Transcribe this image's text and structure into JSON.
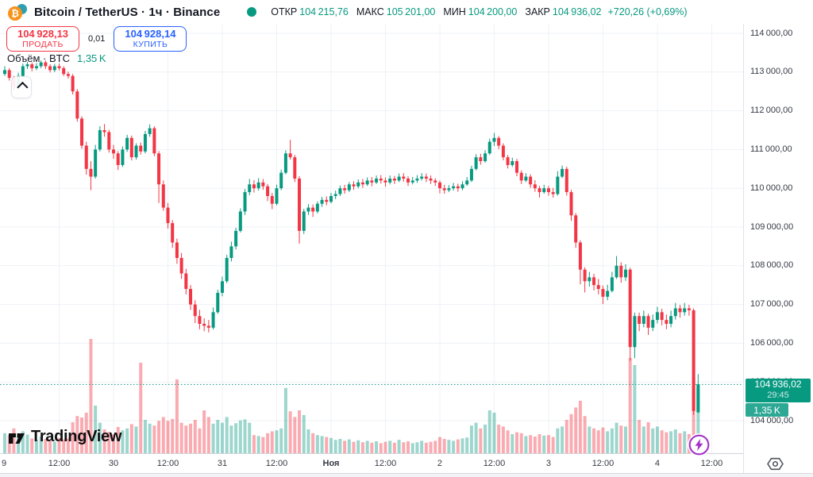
{
  "colors": {
    "up": "#089981",
    "down": "#F23645",
    "up_soft": "rgba(8,153,129,0.40)",
    "down_soft": "rgba(242,54,69,0.42)",
    "blue": "#2962FF",
    "purple": "#A333C8",
    "btc_orange": "#F7931A",
    "tether_teal": "#2F9EAE",
    "grid": "#EFF1F5",
    "axis_text": "#363A45"
  },
  "header": {
    "title": "Bitcoin / TetherUS · 1ч · Binance",
    "ohlc": {
      "open_label": "ОТКР",
      "open_value": "104 215,76",
      "high_label": "МАКС",
      "high_value": "105 201,00",
      "low_label": "МИН",
      "low_value": "104 200,00",
      "close_label": "ЗАКР",
      "close_value": "104 936,02",
      "change": "+720,26 (+0,69%)"
    }
  },
  "trade_panel": {
    "sell_price": "104 928,13",
    "sell_label": "ПРОДАТЬ",
    "spread": "0,01",
    "buy_price": "104 928,14",
    "buy_label": "КУПИТЬ"
  },
  "legend": {
    "title": "Объём · BTC",
    "value": "1,35 K"
  },
  "badges": {
    "last_price": "104 936,02",
    "countdown": "29:45",
    "volume": "1,35 K"
  },
  "branding": {
    "name": "TradingView"
  },
  "chart_data": {
    "type": "candlestick",
    "title": "Bitcoin / TetherUS",
    "interval": "1ч",
    "exchange": "Binance",
    "legend_volume_btc": 1350,
    "last": {
      "open": 104215.76,
      "high": 105201.0,
      "low": 104200.0,
      "close": 104936.02,
      "change": 720.26,
      "change_pct": 0.69,
      "countdown": "29:45"
    },
    "y_axis": {
      "max": 114000,
      "min": 104000,
      "ticks": [
        {
          "v": 114000,
          "label": "114 000,00"
        },
        {
          "v": 113000,
          "label": "113 000,00"
        },
        {
          "v": 112000,
          "label": "112 000,00"
        },
        {
          "v": 111000,
          "label": "111 000,00"
        },
        {
          "v": 110000,
          "label": "110 000,00"
        },
        {
          "v": 109000,
          "label": "109 000,00"
        },
        {
          "v": 108000,
          "label": "108 000,00"
        },
        {
          "v": 107000,
          "label": "107 000,00"
        },
        {
          "v": 106000,
          "label": "106 000,00"
        },
        {
          "v": 105000,
          "label": "105 000,00"
        },
        {
          "v": 104000,
          "label": "104 000,00"
        }
      ]
    },
    "x_axis": {
      "ticks": [
        {
          "index": 0,
          "label": "9",
          "edge": true
        },
        {
          "index": 12,
          "label": "12:00"
        },
        {
          "index": 24,
          "label": "30"
        },
        {
          "index": 36,
          "label": "12:00"
        },
        {
          "index": 48,
          "label": "31"
        },
        {
          "index": 60,
          "label": "12:00"
        },
        {
          "index": 72,
          "label": "Ноя",
          "bold": true
        },
        {
          "index": 84,
          "label": "12:00"
        },
        {
          "index": 96,
          "label": "2"
        },
        {
          "index": 108,
          "label": "12:00"
        },
        {
          "index": 120,
          "label": "3"
        },
        {
          "index": 132,
          "label": "12:00"
        },
        {
          "index": 144,
          "label": "4"
        },
        {
          "index": 156,
          "label": "12:00"
        }
      ]
    },
    "candles": [
      [
        112950,
        113150,
        112900,
        113050,
        420
      ],
      [
        113050,
        113100,
        112780,
        112850,
        380
      ],
      [
        112850,
        112900,
        112520,
        112600,
        520
      ],
      [
        112600,
        112980,
        112550,
        112900,
        340
      ],
      [
        112900,
        113220,
        112850,
        113150,
        460
      ],
      [
        113150,
        113260,
        113080,
        113200,
        390
      ],
      [
        113200,
        113250,
        113020,
        113100,
        310
      ],
      [
        113100,
        113230,
        113050,
        113150,
        280
      ],
      [
        113150,
        113300,
        113100,
        113250,
        350
      ],
      [
        113250,
        113300,
        113080,
        113150,
        300
      ],
      [
        113150,
        113200,
        112990,
        113050,
        260
      ],
      [
        113050,
        113210,
        113000,
        113150,
        240
      ],
      [
        113150,
        113220,
        113040,
        113100,
        320
      ],
      [
        113100,
        113150,
        112900,
        112950,
        290
      ],
      [
        112950,
        113010,
        112830,
        112900,
        310
      ],
      [
        112900,
        112950,
        112420,
        112500,
        650
      ],
      [
        112500,
        112560,
        111720,
        111800,
        780
      ],
      [
        111800,
        111860,
        111020,
        111100,
        750
      ],
      [
        111100,
        111200,
        110350,
        110500,
        850
      ],
      [
        110500,
        110700,
        109950,
        110300,
        2400
      ],
      [
        110300,
        111120,
        110250,
        111000,
        1000
      ],
      [
        111000,
        111600,
        110950,
        111500,
        640
      ],
      [
        111500,
        111660,
        111330,
        111450,
        500
      ],
      [
        111450,
        111510,
        110920,
        111000,
        450
      ],
      [
        111000,
        111120,
        110760,
        110900,
        400
      ],
      [
        110900,
        110960,
        110470,
        110600,
        550
      ],
      [
        110600,
        111080,
        110550,
        111000,
        480
      ],
      [
        111000,
        111380,
        110940,
        111300,
        520
      ],
      [
        111300,
        111360,
        110720,
        110800,
        610
      ],
      [
        110800,
        111160,
        110740,
        111100,
        560
      ],
      [
        111100,
        111180,
        110870,
        110950,
        1900
      ],
      [
        110950,
        111480,
        110900,
        111400,
        700
      ],
      [
        111400,
        111650,
        111330,
        111550,
        620
      ],
      [
        111550,
        111600,
        110830,
        110900,
        580
      ],
      [
        110900,
        110960,
        109620,
        110100,
        680
      ],
      [
        110100,
        110200,
        109420,
        109500,
        760
      ],
      [
        109500,
        109620,
        108960,
        109100,
        680
      ],
      [
        109100,
        109180,
        108460,
        108600,
        720
      ],
      [
        108600,
        108700,
        108050,
        108200,
        1550
      ],
      [
        108200,
        108330,
        107660,
        107800,
        640
      ],
      [
        107800,
        107920,
        107260,
        107400,
        580
      ],
      [
        107400,
        107500,
        106860,
        107000,
        620
      ],
      [
        107000,
        107110,
        106520,
        106700,
        700
      ],
      [
        106700,
        106860,
        106360,
        106500,
        520
      ],
      [
        106500,
        106640,
        106310,
        106450,
        900
      ],
      [
        106450,
        106600,
        106280,
        106400,
        760
      ],
      [
        106400,
        106920,
        106350,
        106800,
        620
      ],
      [
        106800,
        107380,
        106760,
        107300,
        700
      ],
      [
        107300,
        107720,
        107210,
        107600,
        640
      ],
      [
        107600,
        108280,
        107550,
        108200,
        760
      ],
      [
        108200,
        108620,
        108110,
        108500,
        580
      ],
      [
        108500,
        108980,
        108420,
        108900,
        630
      ],
      [
        108900,
        109480,
        108860,
        109400,
        690
      ],
      [
        109400,
        109980,
        109310,
        109900,
        710
      ],
      [
        109900,
        110240,
        109820,
        110100,
        640
      ],
      [
        110100,
        110210,
        109890,
        110000,
        380
      ],
      [
        110000,
        110260,
        109940,
        110150,
        360
      ],
      [
        110150,
        110240,
        109960,
        110050,
        340
      ],
      [
        110050,
        110110,
        109670,
        109800,
        420
      ],
      [
        109800,
        109880,
        109460,
        109600,
        460
      ],
      [
        109600,
        110090,
        109560,
        110000,
        480
      ],
      [
        110000,
        110480,
        109950,
        110400,
        520
      ],
      [
        110400,
        110980,
        110360,
        110900,
        1370
      ],
      [
        110900,
        111250,
        110740,
        110800,
        880
      ],
      [
        110800,
        110860,
        110160,
        110250,
        760
      ],
      [
        110250,
        110310,
        108570,
        108900,
        900
      ],
      [
        108900,
        109470,
        108820,
        109400,
        800
      ],
      [
        109400,
        109590,
        109310,
        109500,
        500
      ],
      [
        109500,
        109580,
        109260,
        109400,
        420
      ],
      [
        109400,
        109660,
        109350,
        109600,
        380
      ],
      [
        109600,
        109780,
        109520,
        109700,
        360
      ],
      [
        109700,
        109790,
        109560,
        109650,
        340
      ],
      [
        109650,
        109880,
        109610,
        109800,
        320
      ],
      [
        109800,
        109940,
        109720,
        109850,
        280
      ],
      [
        109850,
        110070,
        109800,
        110000,
        300
      ],
      [
        110000,
        110090,
        109860,
        109950,
        260
      ],
      [
        109950,
        110160,
        109900,
        110100,
        290
      ],
      [
        110100,
        110180,
        109960,
        110050,
        240
      ],
      [
        110050,
        110230,
        110000,
        110150,
        270
      ],
      [
        110150,
        110240,
        110010,
        110100,
        230
      ],
      [
        110100,
        110280,
        110060,
        110200,
        260
      ],
      [
        110200,
        110290,
        110050,
        110150,
        220
      ],
      [
        110150,
        110330,
        110110,
        110250,
        250
      ],
      [
        110250,
        110340,
        110120,
        110200,
        210
      ],
      [
        110200,
        110280,
        110040,
        110150,
        240
      ],
      [
        110150,
        110330,
        110100,
        110250,
        260
      ],
      [
        110250,
        110320,
        110110,
        110200,
        220
      ],
      [
        110200,
        110380,
        110160,
        110300,
        280
      ],
      [
        110300,
        110390,
        110170,
        110250,
        230
      ],
      [
        110250,
        110310,
        110060,
        110150,
        250
      ],
      [
        110150,
        110290,
        110100,
        110200,
        210
      ],
      [
        110200,
        110340,
        110140,
        110250,
        230
      ],
      [
        110250,
        110390,
        110200,
        110300,
        260
      ],
      [
        110300,
        110380,
        110160,
        110250,
        220
      ],
      [
        110250,
        110330,
        110110,
        110200,
        240
      ],
      [
        110200,
        110260,
        110060,
        110150,
        260
      ],
      [
        110150,
        110200,
        109870,
        110000,
        340
      ],
      [
        110000,
        110090,
        109860,
        109950,
        300
      ],
      [
        109950,
        110080,
        109900,
        110000,
        280
      ],
      [
        110000,
        110140,
        109940,
        110050,
        260
      ],
      [
        110050,
        110120,
        109910,
        110000,
        290
      ],
      [
        110000,
        110180,
        109950,
        110100,
        310
      ],
      [
        110100,
        110290,
        110060,
        110200,
        330
      ],
      [
        110200,
        110580,
        110160,
        110500,
        580
      ],
      [
        110500,
        110880,
        110460,
        110800,
        640
      ],
      [
        110800,
        110890,
        110610,
        110700,
        520
      ],
      [
        110700,
        110980,
        110660,
        110900,
        600
      ],
      [
        110900,
        111280,
        110860,
        111200,
        900
      ],
      [
        111200,
        111430,
        111090,
        111300,
        850
      ],
      [
        111300,
        111350,
        111010,
        111100,
        600
      ],
      [
        111100,
        111160,
        110720,
        110800,
        560
      ],
      [
        110800,
        110860,
        110510,
        110600,
        480
      ],
      [
        110600,
        110790,
        110550,
        110700,
        400
      ],
      [
        110700,
        110760,
        110310,
        110400,
        440
      ],
      [
        110400,
        110460,
        110110,
        110200,
        420
      ],
      [
        110200,
        110390,
        110160,
        110300,
        360
      ],
      [
        110300,
        110360,
        110010,
        110100,
        380
      ],
      [
        110100,
        110210,
        109910,
        110000,
        350
      ],
      [
        110000,
        110060,
        109760,
        109900,
        400
      ],
      [
        109900,
        110090,
        109860,
        110000,
        370
      ],
      [
        110000,
        110060,
        109810,
        109900,
        380
      ],
      [
        109900,
        110010,
        109760,
        109850,
        340
      ],
      [
        109850,
        110440,
        109810,
        110300,
        520
      ],
      [
        110300,
        110590,
        110260,
        110500,
        560
      ],
      [
        110500,
        110560,
        109810,
        109900,
        700
      ],
      [
        109900,
        109960,
        109160,
        109300,
        820
      ],
      [
        109300,
        109360,
        108460,
        108600,
        960
      ],
      [
        108600,
        108660,
        107520,
        107900,
        1100
      ],
      [
        107900,
        107960,
        107310,
        107600,
        780
      ],
      [
        107600,
        107840,
        107460,
        107700,
        560
      ],
      [
        107700,
        107790,
        107360,
        107500,
        520
      ],
      [
        107500,
        107660,
        107260,
        107400,
        480
      ],
      [
        107400,
        107490,
        107010,
        107200,
        540
      ],
      [
        107200,
        107510,
        107110,
        107350,
        460
      ],
      [
        107350,
        107840,
        107310,
        107700,
        520
      ],
      [
        107700,
        108250,
        107660,
        108000,
        640
      ],
      [
        108000,
        108090,
        107560,
        107700,
        580
      ],
      [
        107700,
        108040,
        107610,
        107900,
        560
      ],
      [
        107900,
        107950,
        105550,
        105900,
        2000
      ],
      [
        105900,
        106790,
        105610,
        106700,
        1850
      ],
      [
        106700,
        106790,
        106310,
        106500,
        700
      ],
      [
        106500,
        106840,
        106410,
        106700,
        560
      ],
      [
        106700,
        106760,
        106210,
        106400,
        650
      ],
      [
        106400,
        106740,
        106310,
        106600,
        520
      ],
      [
        106600,
        106940,
        106510,
        106800,
        560
      ],
      [
        106800,
        106890,
        106460,
        106600,
        480
      ],
      [
        106600,
        106740,
        106360,
        106500,
        440
      ],
      [
        106500,
        106840,
        106410,
        106700,
        460
      ],
      [
        106700,
        107040,
        106610,
        106900,
        500
      ],
      [
        106900,
        106990,
        106660,
        106800,
        420
      ],
      [
        106800,
        107040,
        106710,
        106900,
        460
      ],
      [
        106900,
        106990,
        106710,
        106850,
        400
      ],
      [
        106850,
        106900,
        104150,
        104250,
        1580
      ],
      [
        104215.76,
        105201,
        104200,
        104936.02,
        1350
      ]
    ]
  }
}
